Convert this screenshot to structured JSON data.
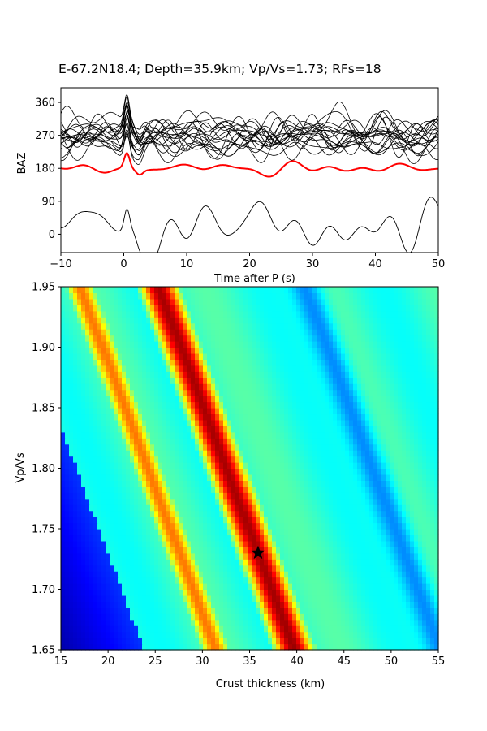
{
  "figure_title": "E-67.2N18.4; Depth=35.9km; Vp/Vs=1.73; RFs=18",
  "chart_data": [
    {
      "type": "line",
      "xlabel": "Time after P (s)",
      "ylabel": "BAZ",
      "xlim": [
        -10,
        50
      ],
      "ylim": [
        -50,
        400
      ],
      "xticks": [
        -10,
        0,
        10,
        20,
        30,
        40,
        50
      ],
      "yticks": [
        0,
        90,
        180,
        270,
        360
      ],
      "grid": false,
      "series": [
        {
          "color": "#000000",
          "kind": "individual receiver functions",
          "count": 18,
          "baz_offsets": [
            240,
            245,
            250,
            255,
            258,
            262,
            265,
            268,
            270,
            272,
            275,
            278,
            282,
            285,
            290,
            295,
            300,
            235
          ]
        },
        {
          "color": "#ff0000",
          "kind": "stacked receiver function",
          "baz_offset": 180
        },
        {
          "color": "#000000",
          "kind": "transverse stack",
          "baz_offset": 20
        }
      ]
    },
    {
      "type": "heatmap",
      "xlabel": "Crust thickness (km)",
      "ylabel": "Vp/Vs",
      "xlim": [
        15,
        55
      ],
      "ylim": [
        1.65,
        1.95
      ],
      "xticks": [
        15,
        20,
        25,
        30,
        35,
        40,
        45,
        50,
        55
      ],
      "yticks": [
        1.65,
        1.7,
        1.75,
        1.8,
        1.85,
        1.9,
        1.95
      ],
      "colormap": "jet",
      "grid": false,
      "best_fit": {
        "thickness": 35.9,
        "vpvs": 1.73,
        "marker": "star",
        "color": "#000000"
      }
    }
  ]
}
